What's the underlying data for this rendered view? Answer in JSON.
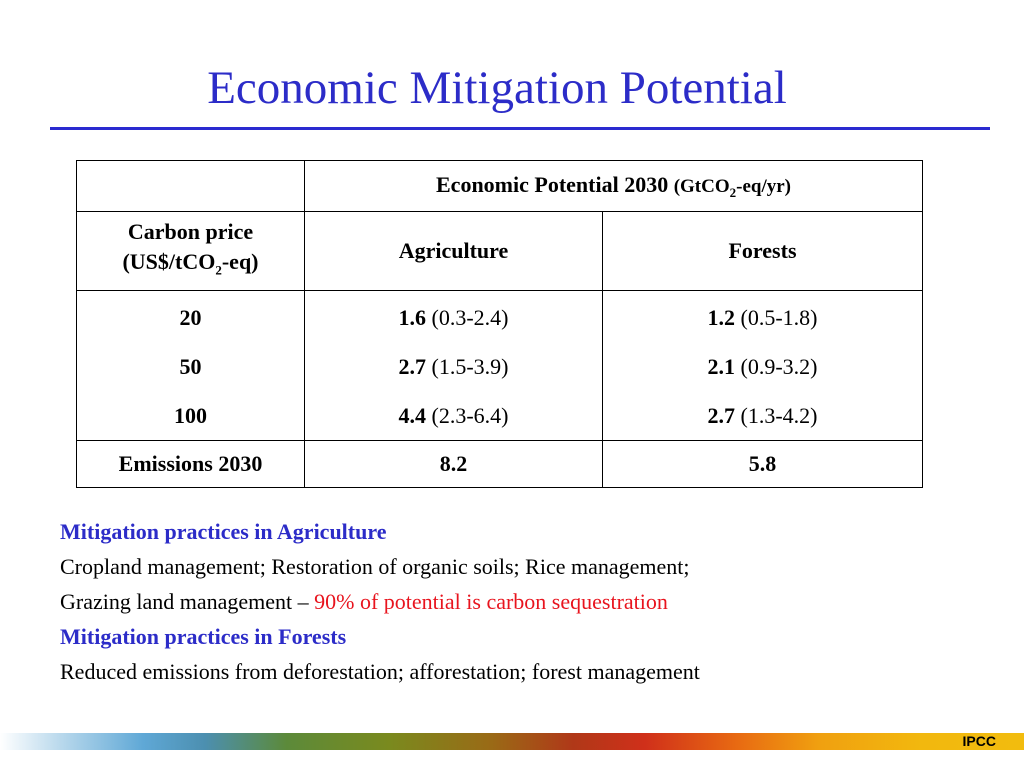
{
  "slide": {
    "title": "Economic Mitigation Potential",
    "footer_label": "IPCC"
  },
  "table": {
    "header_main": "Economic Potential 2030",
    "header_unit_pre": "(GtCO",
    "header_unit_sub": "2",
    "header_unit_post": "-eq/yr)",
    "price_label_line1": "Carbon price",
    "price_label_pre": "(US$/tCO",
    "price_label_sub": "2",
    "price_label_post": "-eq)",
    "col_agriculture": "Agriculture",
    "col_forests": "Forests",
    "rows": [
      {
        "price": "20",
        "agri_value": "1.6",
        "agri_range": "(0.3-2.4)",
        "forest_value": "1.2",
        "forest_range": "(0.5-1.8)"
      },
      {
        "price": "50",
        "agri_value": "2.7",
        "agri_range": "(1.5-3.9)",
        "forest_value": "2.1",
        "forest_range": "(0.9-3.2)"
      },
      {
        "price": "100",
        "agri_value": "4.4",
        "agri_range": "(2.3-6.4)",
        "forest_value": "2.7",
        "forest_range": "(1.3-4.2)"
      }
    ],
    "emissions_label": "Emissions 2030",
    "emissions_agri": "8.2",
    "emissions_forests": "5.8"
  },
  "notes": {
    "agri_heading": "Mitigation practices in Agriculture",
    "agri_line1": "Cropland management; Restoration of organic soils; Rice management;",
    "agri_line2_pre": "Grazing land management – ",
    "agri_line2_highlight": "90% of potential is carbon sequestration",
    "forest_heading": "Mitigation practices in Forests",
    "forest_line1": "Reduced emissions from deforestation; afforestation; forest management"
  },
  "colors": {
    "title": "#2c2cc8",
    "heading": "#2c2cc8",
    "highlight": "#e8141e"
  }
}
